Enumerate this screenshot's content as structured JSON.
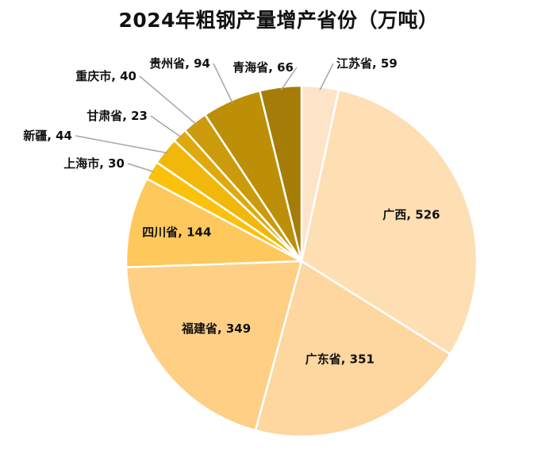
{
  "chart_data": {
    "type": "pie",
    "title": "2024年粗钢产量增产省份（万吨）",
    "start_angle_deg": 0,
    "direction": "clockwise",
    "labels": [
      "江苏省",
      "广西",
      "广东省",
      "福建省",
      "四川省",
      "上海市",
      "新疆",
      "甘肃省",
      "重庆市",
      "贵州省",
      "青海省"
    ],
    "values": [
      59,
      526,
      351,
      349,
      144,
      30,
      44,
      23,
      40,
      94,
      66
    ],
    "data_labels": [
      "江苏省, 59",
      "广西, 526",
      "广东省, 351",
      "福建省, 349",
      "四川省, 144",
      "上海市, 30",
      "新疆, 44",
      "甘肃省, 23",
      "重庆市, 40",
      "贵州省, 94",
      "青海省, 66"
    ],
    "colors": [
      "#fde3c8",
      "#fddfb3",
      "#fdd6a0",
      "#fecf85",
      "#fec85c",
      "#fbc10b",
      "#f1b80b",
      "#dfa90b",
      "#cc9b0b",
      "#bd8f06",
      "#a57c08"
    ],
    "legend": "none"
  }
}
